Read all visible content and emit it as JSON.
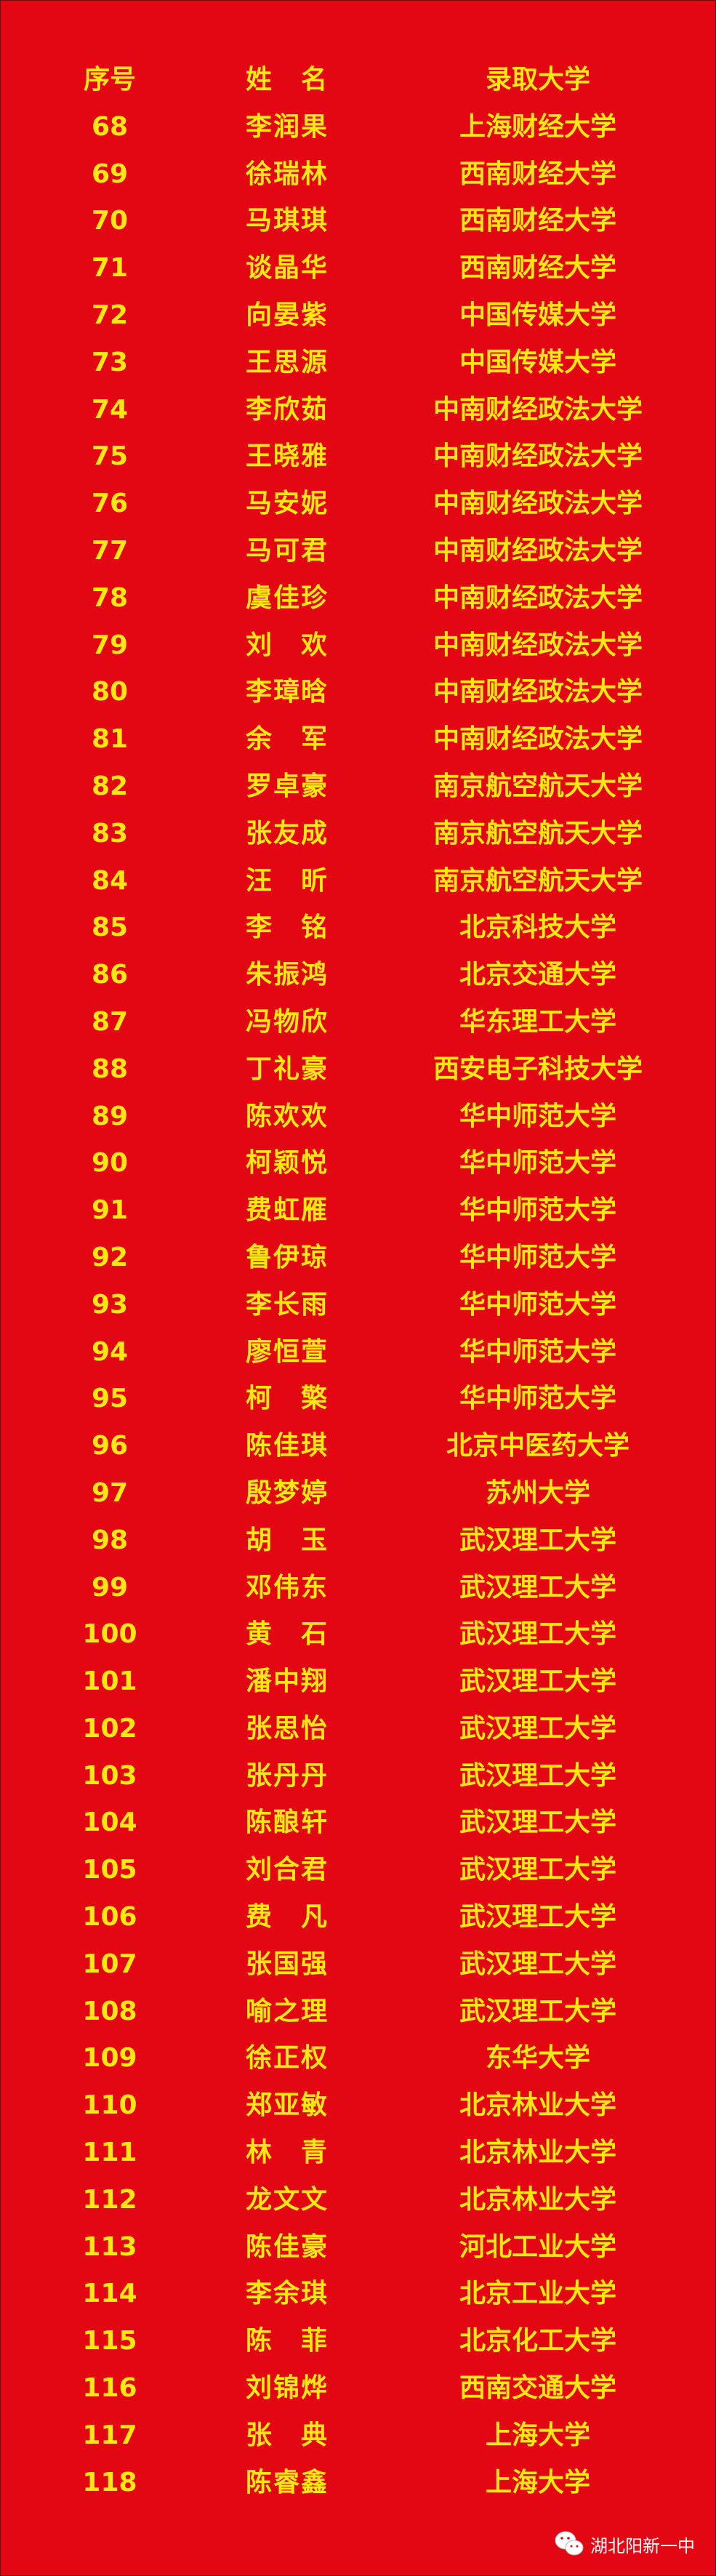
{
  "header": {
    "no": "序号",
    "name": "姓　名",
    "university": "录取大学"
  },
  "rows": [
    {
      "no": "68",
      "name": "李润果",
      "university": "上海财经大学"
    },
    {
      "no": "69",
      "name": "徐瑞林",
      "university": "西南财经大学"
    },
    {
      "no": "70",
      "name": "马琪琪",
      "university": "西南财经大学"
    },
    {
      "no": "71",
      "name": "谈晶华",
      "university": "西南财经大学"
    },
    {
      "no": "72",
      "name": "向晏紫",
      "university": "中国传媒大学"
    },
    {
      "no": "73",
      "name": "王思源",
      "university": "中国传媒大学"
    },
    {
      "no": "74",
      "name": "李欣茹",
      "university": "中南财经政法大学"
    },
    {
      "no": "75",
      "name": "王晓雅",
      "university": "中南财经政法大学"
    },
    {
      "no": "76",
      "name": "马安妮",
      "university": "中南财经政法大学"
    },
    {
      "no": "77",
      "name": "马可君",
      "university": "中南财经政法大学"
    },
    {
      "no": "78",
      "name": "虞佳珍",
      "university": "中南财经政法大学"
    },
    {
      "no": "79",
      "name": "刘　欢",
      "university": "中南财经政法大学"
    },
    {
      "no": "80",
      "name": "李璋晗",
      "university": "中南财经政法大学"
    },
    {
      "no": "81",
      "name": "余　军",
      "university": "中南财经政法大学"
    },
    {
      "no": "82",
      "name": "罗卓豪",
      "university": "南京航空航天大学"
    },
    {
      "no": "83",
      "name": "张友成",
      "university": "南京航空航天大学"
    },
    {
      "no": "84",
      "name": "汪　昕",
      "university": "南京航空航天大学"
    },
    {
      "no": "85",
      "name": "李　铭",
      "university": "北京科技大学"
    },
    {
      "no": "86",
      "name": "朱振鸿",
      "university": "北京交通大学"
    },
    {
      "no": "87",
      "name": "冯物欣",
      "university": "华东理工大学"
    },
    {
      "no": "88",
      "name": "丁礼豪",
      "university": "西安电子科技大学"
    },
    {
      "no": "89",
      "name": "陈欢欢",
      "university": "华中师范大学"
    },
    {
      "no": "90",
      "name": "柯颖悦",
      "university": "华中师范大学"
    },
    {
      "no": "91",
      "name": "费虹雁",
      "university": "华中师范大学"
    },
    {
      "no": "92",
      "name": "鲁伊琼",
      "university": "华中师范大学"
    },
    {
      "no": "93",
      "name": "李长雨",
      "university": "华中师范大学"
    },
    {
      "no": "94",
      "name": "廖恒萱",
      "university": "华中师范大学"
    },
    {
      "no": "95",
      "name": "柯　檠",
      "university": "华中师范大学"
    },
    {
      "no": "96",
      "name": "陈佳琪",
      "university": "北京中医药大学"
    },
    {
      "no": "97",
      "name": "殷梦婷",
      "university": "苏州大学"
    },
    {
      "no": "98",
      "name": "胡　玉",
      "university": "武汉理工大学"
    },
    {
      "no": "99",
      "name": "邓伟东",
      "university": "武汉理工大学"
    },
    {
      "no": "100",
      "name": "黄　石",
      "university": "武汉理工大学"
    },
    {
      "no": "101",
      "name": "潘中翔",
      "university": "武汉理工大学"
    },
    {
      "no": "102",
      "name": "张思怡",
      "university": "武汉理工大学"
    },
    {
      "no": "103",
      "name": "张丹丹",
      "university": "武汉理工大学"
    },
    {
      "no": "104",
      "name": "陈酿轩",
      "university": "武汉理工大学"
    },
    {
      "no": "105",
      "name": "刘合君",
      "university": "武汉理工大学"
    },
    {
      "no": "106",
      "name": "费　凡",
      "university": "武汉理工大学"
    },
    {
      "no": "107",
      "name": "张国强",
      "university": "武汉理工大学"
    },
    {
      "no": "108",
      "name": "喻之理",
      "university": "武汉理工大学"
    },
    {
      "no": "109",
      "name": "徐正权",
      "university": "东华大学"
    },
    {
      "no": "110",
      "name": "郑亚敏",
      "university": "北京林业大学"
    },
    {
      "no": "111",
      "name": "林　青",
      "university": "北京林业大学"
    },
    {
      "no": "112",
      "name": "龙文文",
      "university": "北京林业大学"
    },
    {
      "no": "113",
      "name": "陈佳豪",
      "university": "河北工业大学"
    },
    {
      "no": "114",
      "name": "李余琪",
      "university": "北京工业大学"
    },
    {
      "no": "115",
      "name": "陈　菲",
      "university": "北京化工大学"
    },
    {
      "no": "116",
      "name": "刘锦烨",
      "university": "西南交通大学"
    },
    {
      "no": "117",
      "name": "张　典",
      "university": "上海大学"
    },
    {
      "no": "118",
      "name": "陈睿鑫",
      "university": "上海大学"
    }
  ],
  "watermark": {
    "icon": "wechat-icon",
    "text": "湖北阳新一中"
  },
  "colors": {
    "background": "#e30613",
    "text": "#ffe812"
  }
}
